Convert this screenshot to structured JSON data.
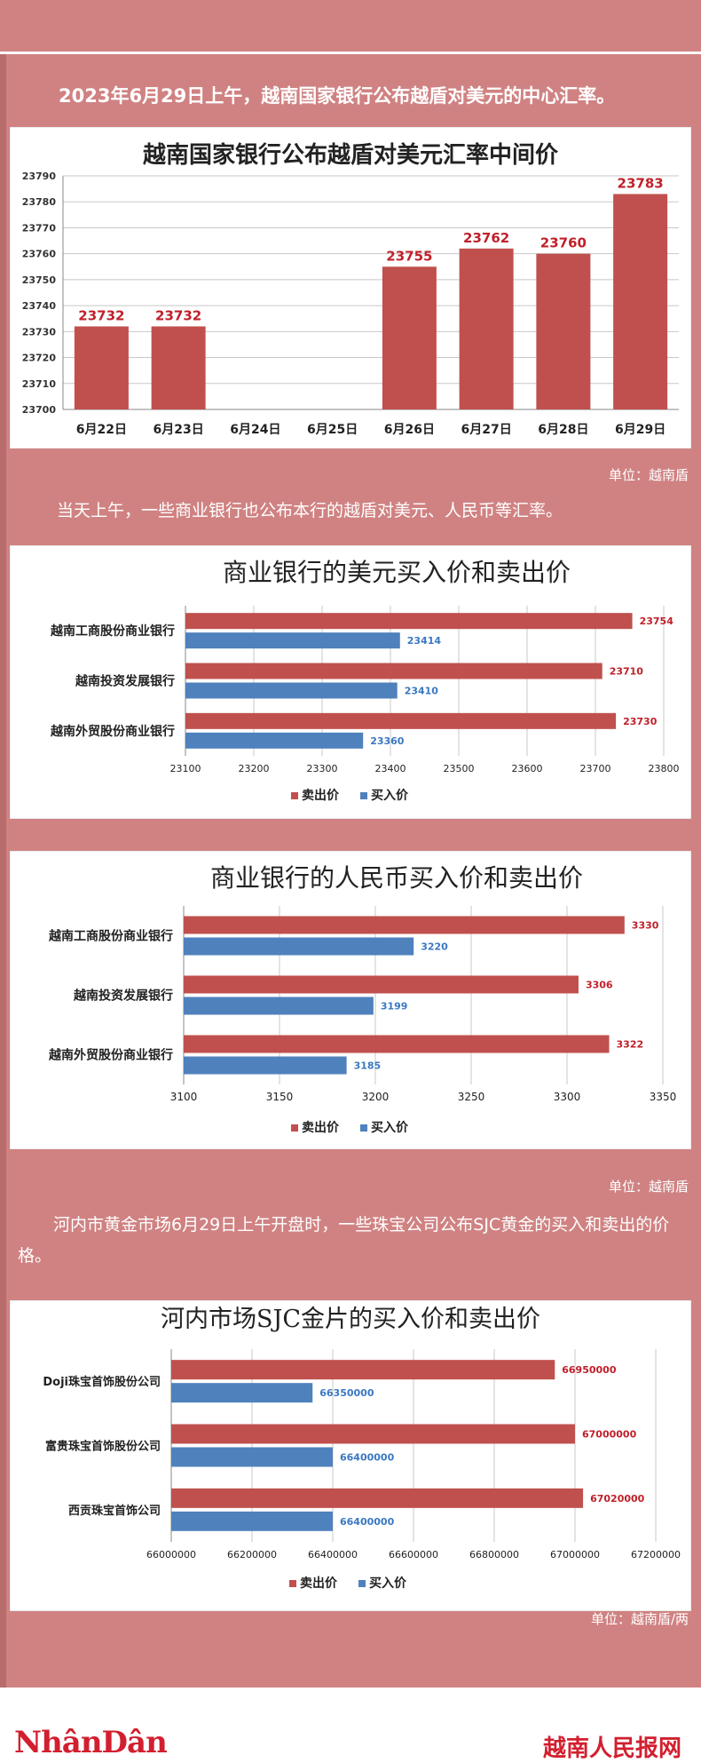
{
  "intro": {
    "para1": "2023年6月29日上午，越南国家银行公布越盾对美元的中心汇率。",
    "unit1": "单位：越南盾",
    "para2": "当天上午，一些商业银行也公布本行的越盾对美元、人民币等汇率。",
    "unit2": "单位：越南盾",
    "para3": "河内市黄金市场6月29日上午开盘时，一些珠宝公司公布SJC黄金的买入和卖出的价格。",
    "unit3": "单位：越南盾/两"
  },
  "footer": {
    "logo_left": "NhânDân",
    "logo_right": "越南人民报网"
  },
  "colors": {
    "background": "#d08282",
    "sell": "#c0504d",
    "buy": "#4f81bd",
    "value_red": "#c0202a",
    "value_blue": "#3a78c2",
    "logo": "#d21f2f"
  },
  "chart_data": [
    {
      "type": "bar",
      "title": "越南国家银行公布越盾对美元汇率中间价",
      "categories": [
        "6月22日",
        "6月23日",
        "6月24日",
        "6月25日",
        "6月26日",
        "6月27日",
        "6月28日",
        "6月29日"
      ],
      "values": [
        23732,
        23732,
        null,
        null,
        23755,
        23762,
        23760,
        23783
      ],
      "ylim": [
        23700,
        23790
      ],
      "yticks": [
        23700,
        23710,
        23720,
        23730,
        23740,
        23750,
        23760,
        23770,
        23780,
        23790
      ],
      "grid": true
    },
    {
      "type": "bar",
      "orientation": "horizontal",
      "title": "商业银行的美元买入价和卖出价",
      "categories": [
        "越南工商股份商业银行",
        "越南投资发展银行",
        "越南外贸股份商业银行"
      ],
      "series": [
        {
          "name": "卖出价",
          "values": [
            23754,
            23710,
            23730
          ]
        },
        {
          "name": "买入价",
          "values": [
            23414,
            23410,
            23360
          ]
        }
      ],
      "xlim": [
        23100,
        23800
      ],
      "xticks": [
        23100,
        23200,
        23300,
        23400,
        23500,
        23600,
        23700,
        23800
      ],
      "legend": "bottom",
      "grid": true
    },
    {
      "type": "bar",
      "orientation": "horizontal",
      "title": "商业银行的人民币买入价和卖出价",
      "categories": [
        "越南工商股份商业银行",
        "越南投资发展银行",
        "越南外贸股份商业银行"
      ],
      "series": [
        {
          "name": "卖出价",
          "values": [
            3330,
            3306,
            3322
          ]
        },
        {
          "name": "买入价",
          "values": [
            3220,
            3199,
            3185
          ]
        }
      ],
      "xlim": [
        3100,
        3350
      ],
      "xticks": [
        3100,
        3150,
        3200,
        3250,
        3300,
        3350
      ],
      "legend": "bottom",
      "grid": true
    },
    {
      "type": "bar",
      "orientation": "horizontal",
      "title": "河内市场SJC金片的买入价和卖出价",
      "categories": [
        "Doji珠宝首饰股份公司",
        "富贵珠宝首饰股份公司",
        "西贡珠宝首饰公司"
      ],
      "series": [
        {
          "name": "卖出价",
          "values": [
            66950000,
            67000000,
            67020000
          ]
        },
        {
          "name": "买入价",
          "values": [
            66350000,
            66400000,
            66400000
          ]
        }
      ],
      "xlim": [
        66000000,
        67200000
      ],
      "xticks": [
        66000000,
        66200000,
        66400000,
        66600000,
        66800000,
        67000000,
        67200000
      ],
      "legend": "bottom",
      "grid": true
    }
  ]
}
